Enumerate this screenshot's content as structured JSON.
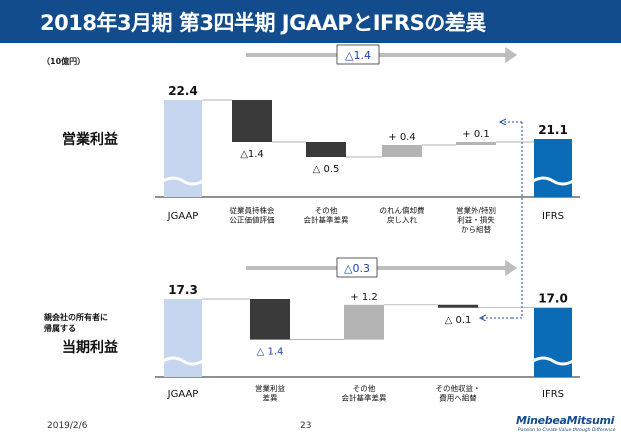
{
  "header": {
    "title": "2018年3月期 第3四半期 JGAAPとIFRSの差異"
  },
  "unit_label": "（10億円）",
  "footer": {
    "date": "2019/2/6",
    "page": "23",
    "brand": "MinebeaMitsumi",
    "tagline": "Passion to Create Value through Difference"
  },
  "colors": {
    "title_bg": "#134c8c",
    "start_bar": "#c5d6ee",
    "end_bar": "#0a6cb6",
    "dark_bar": "#3a3a3a",
    "light_bar": "#b4b4b4",
    "negative_text": "#1a3fb0",
    "arrow": "#bdbdbd",
    "dotted_arrow": "#1f4fa8"
  },
  "chart_data": [
    {
      "type": "waterfall",
      "title": "営業利益",
      "total_change_label": "△1.4",
      "categories": [
        "JGAAP",
        "従業員持株会\n公正価値評価",
        "その他\n会計基準差異",
        "のれん償却費\n戻し入れ",
        "営業外/特別\n利益・損失\nから組替",
        "IFRS"
      ],
      "values": [
        22.4,
        -1.4,
        -0.5,
        0.4,
        0.1,
        21.1
      ],
      "value_labels": [
        "22.4",
        "△1.4",
        "△ 0.5",
        "+ 0.4",
        "+ 0.1",
        "21.1"
      ],
      "bar_styles": [
        "start",
        "dark",
        "dark",
        "light",
        "light",
        "end"
      ],
      "axis_break": true
    },
    {
      "type": "waterfall",
      "title": "当期利益",
      "subtitle": "親会社の所有者に\n帰属する",
      "total_change_label": "△0.3",
      "categories": [
        "JGAAP",
        "営業利益\n差異",
        "その他\n会計基準差異",
        "その他収益・\n費用へ組替",
        "IFRS"
      ],
      "values": [
        17.3,
        -1.4,
        1.2,
        -0.1,
        17.0
      ],
      "value_labels": [
        "17.3",
        "△ 1.4",
        "+ 1.2",
        "△ 0.1",
        "17.0"
      ],
      "bar_styles": [
        "start",
        "dark",
        "light",
        "dark",
        "end"
      ],
      "axis_break": true
    }
  ]
}
